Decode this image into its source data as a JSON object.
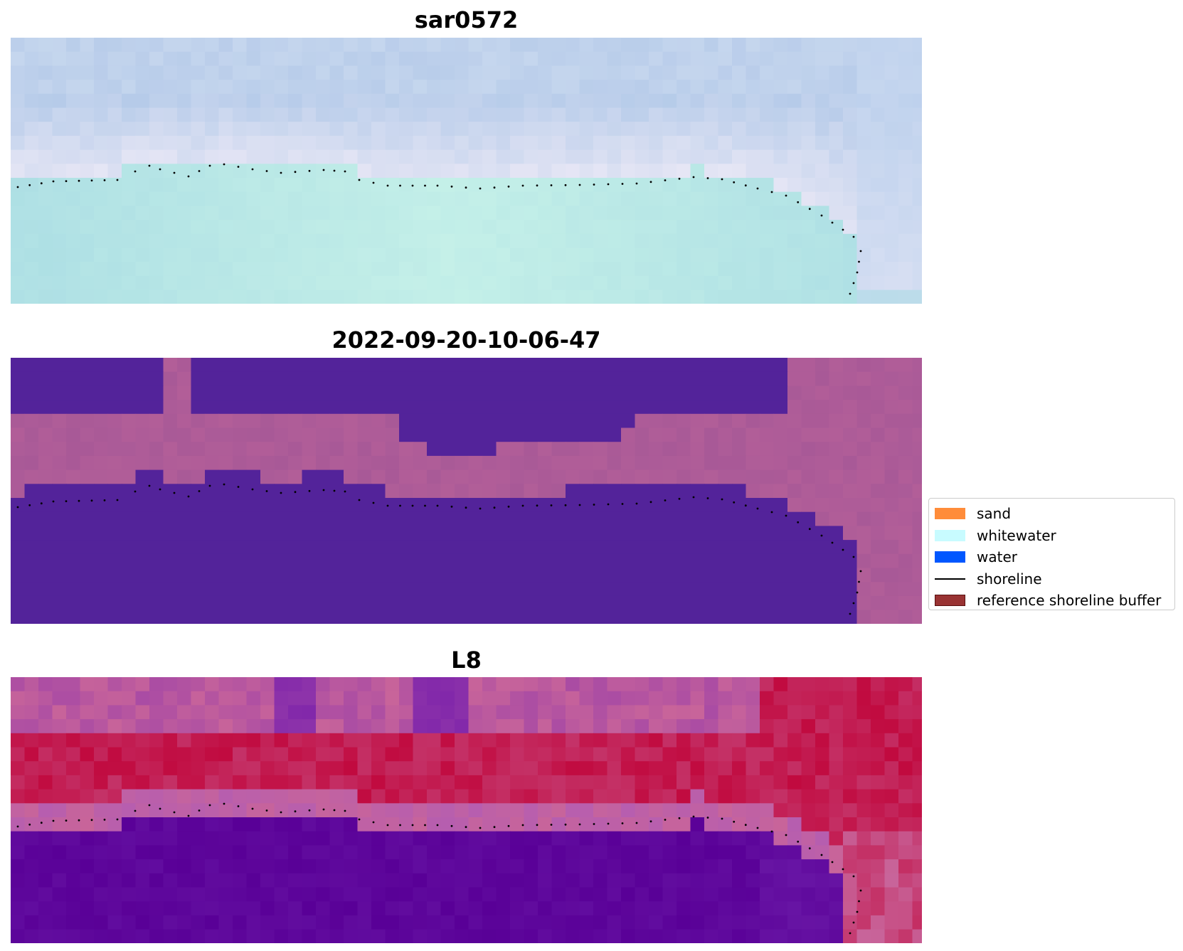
{
  "titles": {
    "top": "sar0572",
    "middle": "2022-09-20-10-06-47",
    "bottom": "L8"
  },
  "legend": {
    "placement": "center-right",
    "items": [
      {
        "label": "sand",
        "color": "#ff8c3a",
        "kind": "patch"
      },
      {
        "label": "whitewater",
        "color": "#c8fbff",
        "kind": "patch"
      },
      {
        "label": "water",
        "color": "#0057ff",
        "kind": "patch"
      },
      {
        "label": "shoreline",
        "color": "#000000",
        "kind": "line"
      },
      {
        "label": "reference shoreline buffer",
        "color": "#993333",
        "kind": "patch"
      }
    ]
  },
  "colors": {
    "rgb_sky": "#b9cdea",
    "rgb_surf": "#e6e6f5",
    "rgb_sea": "#c3efe8",
    "class_background": "#53239a",
    "class_sand": "#b25e98",
    "index_high": "#c10a3f",
    "index_mid": "#c8649a",
    "index_low": "#590097"
  }
}
